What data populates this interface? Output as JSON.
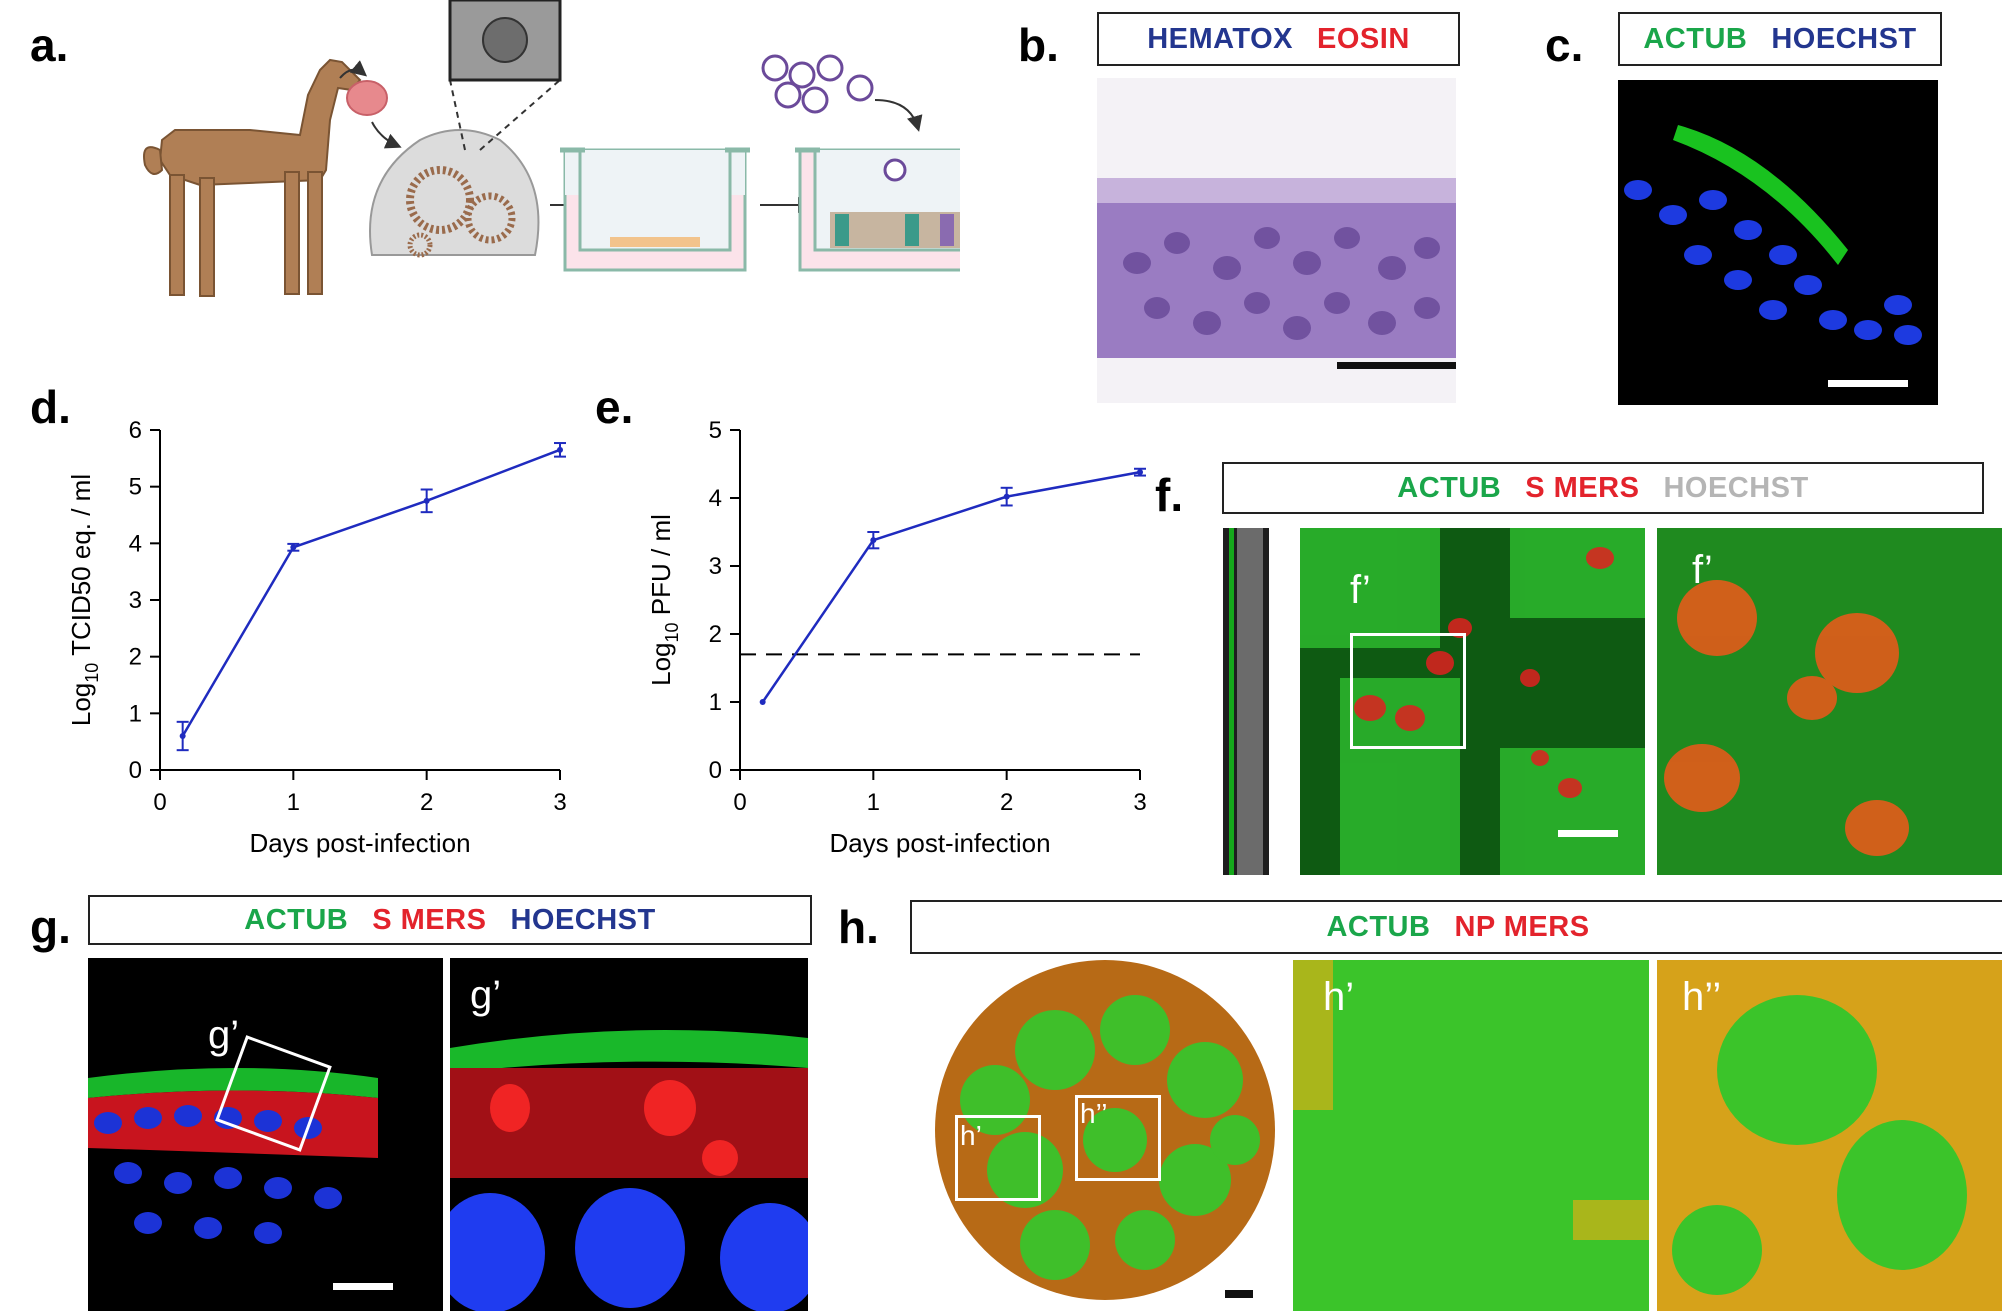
{
  "panels": {
    "a": {
      "label": "a."
    },
    "b": {
      "label": "b.",
      "stains": [
        "HEMATOX",
        "EOSIN"
      ]
    },
    "c": {
      "label": "c.",
      "stains": [
        "ACTUB",
        "HOECHST"
      ]
    },
    "f": {
      "label": "f.",
      "stains": [
        "ACTUB",
        "S MERS",
        "HOECHST"
      ],
      "inset": "f’"
    },
    "g": {
      "label": "g.",
      "stains": [
        "ACTUB",
        "S MERS",
        "HOECHST"
      ],
      "inset": "g’"
    },
    "h": {
      "label": "h.",
      "stains": [
        "ACTUB",
        "NP MERS"
      ],
      "inset1": "h’",
      "inset2": "h’’"
    }
  },
  "colors": {
    "green": "#1aa64a",
    "red": "#e3232c",
    "blue": "#23368f",
    "gray": "#b5b5b5",
    "line": "#1f2bbf"
  },
  "chart_data": [
    {
      "panel": "d.",
      "type": "line",
      "xlabel": "Days post-infection",
      "ylabel_prefix": "Log",
      "ylabel_sub": "10",
      "ylabel_rest": " TCID50 eq. / ml",
      "xlim": [
        0,
        3
      ],
      "ylim": [
        0,
        6
      ],
      "xticks": [
        0,
        1,
        2,
        3
      ],
      "yticks": [
        0,
        1,
        2,
        3,
        4,
        5,
        6
      ],
      "points": [
        {
          "x": 0.17,
          "y": 0.6,
          "err": 0.25
        },
        {
          "x": 1,
          "y": 3.93,
          "err": 0.06
        },
        {
          "x": 2,
          "y": 4.75,
          "err": 0.2
        },
        {
          "x": 3,
          "y": 5.65,
          "err": 0.12
        }
      ]
    },
    {
      "panel": "e.",
      "type": "line",
      "xlabel": "Days post-infection",
      "ylabel_prefix": "Log",
      "ylabel_sub": "10",
      "ylabel_rest": " PFU / ml",
      "xlim": [
        0,
        3
      ],
      "ylim": [
        0,
        5
      ],
      "xticks": [
        0,
        1,
        2,
        3
      ],
      "yticks": [
        0,
        1,
        2,
        3,
        4,
        5
      ],
      "points": [
        {
          "x": 0.17,
          "y": 1.0,
          "err": 0
        },
        {
          "x": 1,
          "y": 3.38,
          "err": 0.12
        },
        {
          "x": 2,
          "y": 4.02,
          "err": 0.13
        },
        {
          "x": 3,
          "y": 4.38,
          "err": 0.05
        }
      ],
      "hline": 1.7
    }
  ]
}
